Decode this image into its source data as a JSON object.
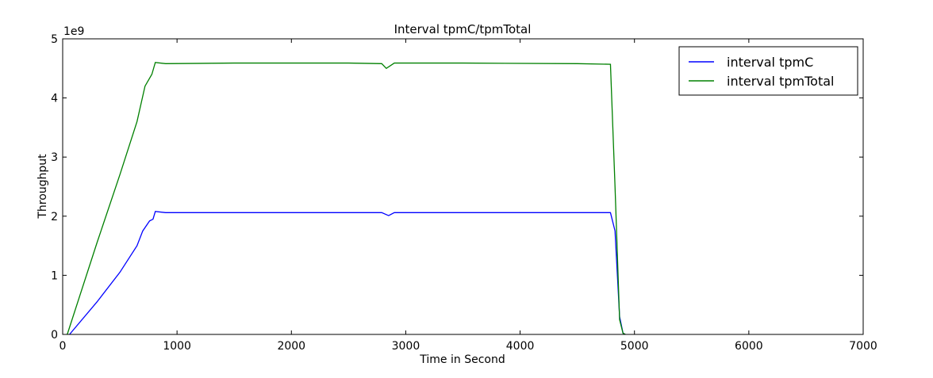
{
  "chart_data": {
    "type": "line",
    "title": "Interval tpmC/tpmTotal",
    "xlabel": "Time in Second",
    "ylabel": "Throughput",
    "y_scale_label": "1e9",
    "xlim": [
      0,
      7000
    ],
    "ylim": [
      0,
      5
    ],
    "x_ticks": [
      0,
      1000,
      2000,
      3000,
      4000,
      5000,
      6000,
      7000
    ],
    "y_ticks": [
      0,
      1,
      2,
      3,
      4,
      5
    ],
    "grid": false,
    "legend_position": "top-right",
    "series": [
      {
        "name": "interval tpmC",
        "color": "#0000ff",
        "points": [
          [
            60,
            0
          ],
          [
            300,
            0.55
          ],
          [
            500,
            1.05
          ],
          [
            650,
            1.5
          ],
          [
            700,
            1.75
          ],
          [
            760,
            1.92
          ],
          [
            790,
            1.95
          ],
          [
            810,
            2.08
          ],
          [
            900,
            2.06
          ],
          [
            1500,
            2.06
          ],
          [
            2500,
            2.06
          ],
          [
            2790,
            2.06
          ],
          [
            2850,
            2.01
          ],
          [
            2900,
            2.06
          ],
          [
            3500,
            2.06
          ],
          [
            4500,
            2.06
          ],
          [
            4790,
            2.06
          ],
          [
            4830,
            1.75
          ],
          [
            4870,
            0.3
          ],
          [
            4900,
            0.02
          ],
          [
            4920,
            0
          ]
        ]
      },
      {
        "name": "interval tpmTotal",
        "color": "#008000",
        "points": [
          [
            40,
            0
          ],
          [
            300,
            1.55
          ],
          [
            500,
            2.7
          ],
          [
            650,
            3.6
          ],
          [
            720,
            4.2
          ],
          [
            780,
            4.4
          ],
          [
            810,
            4.6
          ],
          [
            900,
            4.58
          ],
          [
            1500,
            4.59
          ],
          [
            2500,
            4.59
          ],
          [
            2790,
            4.58
          ],
          [
            2830,
            4.5
          ],
          [
            2900,
            4.59
          ],
          [
            3500,
            4.59
          ],
          [
            4500,
            4.58
          ],
          [
            4790,
            4.57
          ],
          [
            4830,
            2.5
          ],
          [
            4870,
            0.25
          ],
          [
            4900,
            0.02
          ],
          [
            4920,
            0
          ]
        ]
      }
    ]
  }
}
